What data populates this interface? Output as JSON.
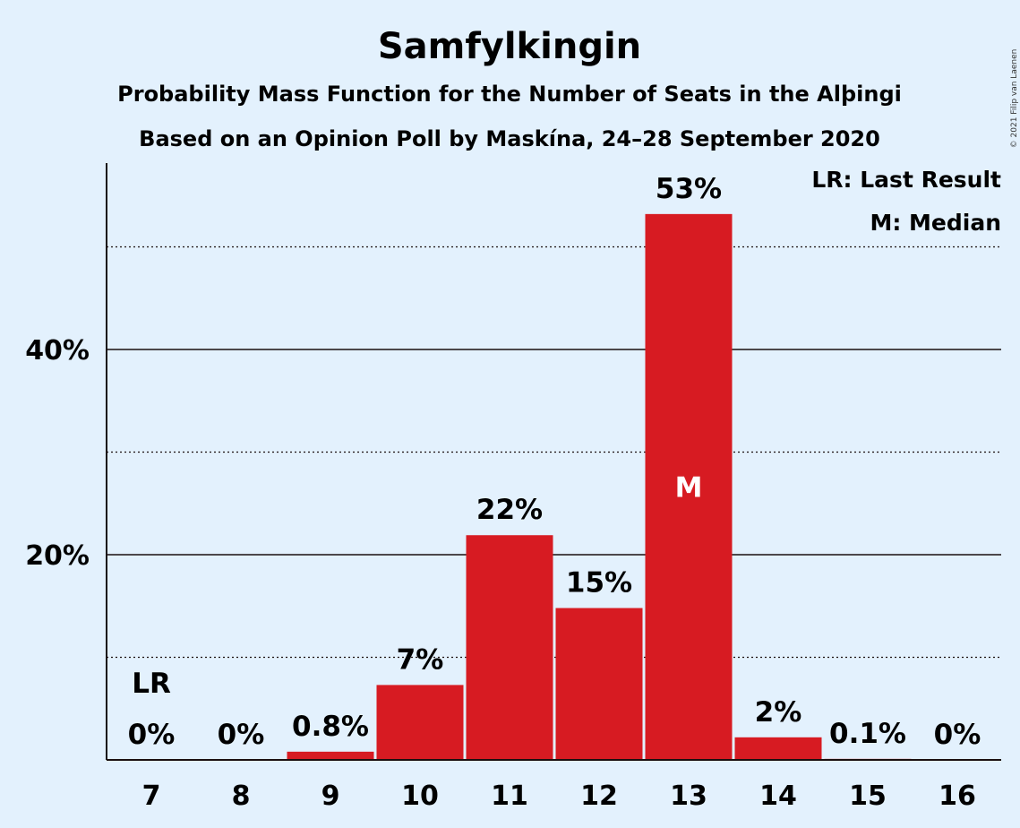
{
  "chart_data": {
    "type": "bar",
    "title": "Samfylkingin",
    "subtitle_lines": [
      "Probability Mass Function for the Number of Seats in the Alþingi",
      "Based on an Opinion Poll by Maskína, 24–28 September 2020"
    ],
    "categories": [
      "7",
      "8",
      "9",
      "10",
      "11",
      "12",
      "13",
      "14",
      "15",
      "16"
    ],
    "values": [
      0,
      0,
      0.8,
      7.3,
      21.9,
      14.8,
      53.2,
      2.2,
      0.1,
      0
    ],
    "data_labels": [
      "0%",
      "0%",
      "0.8%",
      "7%",
      "22%",
      "15%",
      "53%",
      "2%",
      "0.1%",
      "0%"
    ],
    "ylim": [
      0,
      58
    ],
    "y_major_ticks": [
      {
        "value": 20,
        "label": "20%"
      },
      {
        "value": 40,
        "label": "40%"
      }
    ],
    "y_minor_gridlines": [
      10,
      30,
      50
    ],
    "bar_color": "#d71b22",
    "background": "#e3f1fd",
    "last_result": {
      "category": "7",
      "label": "LR"
    },
    "median": {
      "category": "13",
      "label": "M"
    },
    "legend": {
      "placement": "top-right",
      "entries": [
        "LR: Last Result",
        "M: Median"
      ]
    },
    "copyright": "© 2021 Filip van Laenen"
  }
}
